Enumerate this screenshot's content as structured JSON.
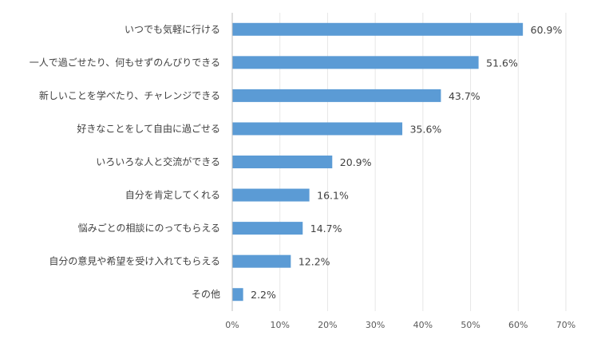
{
  "chart_data": {
    "type": "bar",
    "orientation": "horizontal",
    "categories": [
      "いつでも気軽に行ける",
      "一人で過ごせたり、何もせずのんびりできる",
      "新しいことを学べたり、チャレンジできる",
      "好きなことをして自由に過ごせる",
      "いろいろな人と交流ができる",
      "自分を肯定してくれる",
      "悩みごとの相談にのってもらえる",
      "自分の意見や希望を受け入れてもらえる",
      "その他"
    ],
    "values": [
      60.9,
      51.6,
      43.7,
      35.6,
      20.9,
      16.1,
      14.7,
      12.2,
      2.2
    ],
    "value_labels": [
      "60.9%",
      "51.6%",
      "43.7%",
      "35.6%",
      "20.9%",
      "16.1%",
      "14.7%",
      "12.2%",
      "2.2%"
    ],
    "xticks": [
      "0%",
      "10%",
      "20%",
      "30%",
      "40%",
      "50%",
      "60%",
      "70%"
    ],
    "xlim": [
      0,
      70
    ],
    "grid": true,
    "bar_color": "#5b9bd5"
  }
}
